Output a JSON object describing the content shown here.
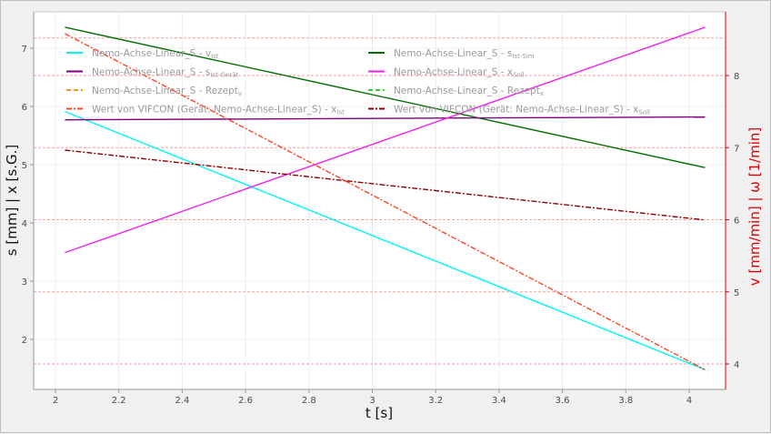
{
  "chart_data": {
    "type": "line",
    "xlabel": "t [s]",
    "ylabel_left": "s [mm] | x [s.G.]",
    "ylabel_right": "v [mm/min] | ω [1/min]",
    "xlim": [
      1.95,
      4.12
    ],
    "ylim_left": [
      1.6,
      7.6
    ],
    "ylim_right": [
      3.85,
      8.73
    ],
    "x_ticks": [
      "2",
      "2.2",
      "2.4",
      "2.6",
      "2.8",
      "3",
      "3.2",
      "3.4",
      "3.6",
      "3.8",
      "4"
    ],
    "y_ticks_left": [
      "2",
      "3",
      "4",
      "5",
      "6",
      "7"
    ],
    "y_ticks_right": [
      "4",
      "5",
      "6",
      "7",
      "8"
    ],
    "grid": true,
    "legend_position": "top",
    "series": [
      {
        "name": "Nemo-Achse-Linear_S - v",
        "sub": "Ist",
        "axis": "right",
        "color": "#00f5f5",
        "dash": "",
        "x": [
          2.03,
          4.05
        ],
        "y": [
          7.5,
          3.92
        ]
      },
      {
        "name": "Nemo-Achse-Linear_S - s",
        "sub": "Ist-Sim",
        "axis": "left",
        "color": "#007000",
        "dash": "",
        "x": [
          2.03,
          4.05
        ],
        "y": [
          7.36,
          4.95
        ]
      },
      {
        "name": "Nemo-Achse-Linear_S - s",
        "sub": "Ist-Gerät",
        "axis": "left",
        "color": "#800080",
        "dash": "",
        "x": [
          2.03,
          4.05
        ],
        "y": [
          5.77,
          5.82
        ]
      },
      {
        "name": "Nemo-Achse-Linear_S - x",
        "sub": "Soll",
        "axis": "left",
        "color": "#ee22ee",
        "dash": "",
        "x": [
          2.03,
          4.05
        ],
        "y": [
          3.49,
          7.36
        ]
      },
      {
        "name": "Nemo-Achse-Linear_S - Rezept",
        "sub": "v",
        "axis": "right",
        "color": "#ff9900",
        "dash": "5,3",
        "x": [],
        "y": []
      },
      {
        "name": "Nemo-Achse-Linear_S - Rezept",
        "sub": "x",
        "axis": "left",
        "color": "#22dd22",
        "dash": "5,3",
        "x": [],
        "y": []
      },
      {
        "name": "Wert von VIFCON (Gerät: Nemo-Achse-Linear_S) - x",
        "sub": "Ist",
        "axis": "right",
        "color": "#ff4422",
        "dash": "6,2,2,2",
        "x": [
          2.03,
          4.05
        ],
        "y": [
          8.58,
          3.92
        ]
      },
      {
        "name": "Wert von VIFCON (Gerät: Nemo-Achse-Linear_S) - x",
        "sub": "Soll",
        "axis": "left",
        "color": "#8b0000",
        "dash": "6,2,2,2",
        "x": [
          2.03,
          4.05
        ],
        "y": [
          5.25,
          4.05
        ]
      }
    ],
    "reference_lines_right": [
      4,
      5,
      6,
      7,
      8,
      8.52
    ]
  }
}
